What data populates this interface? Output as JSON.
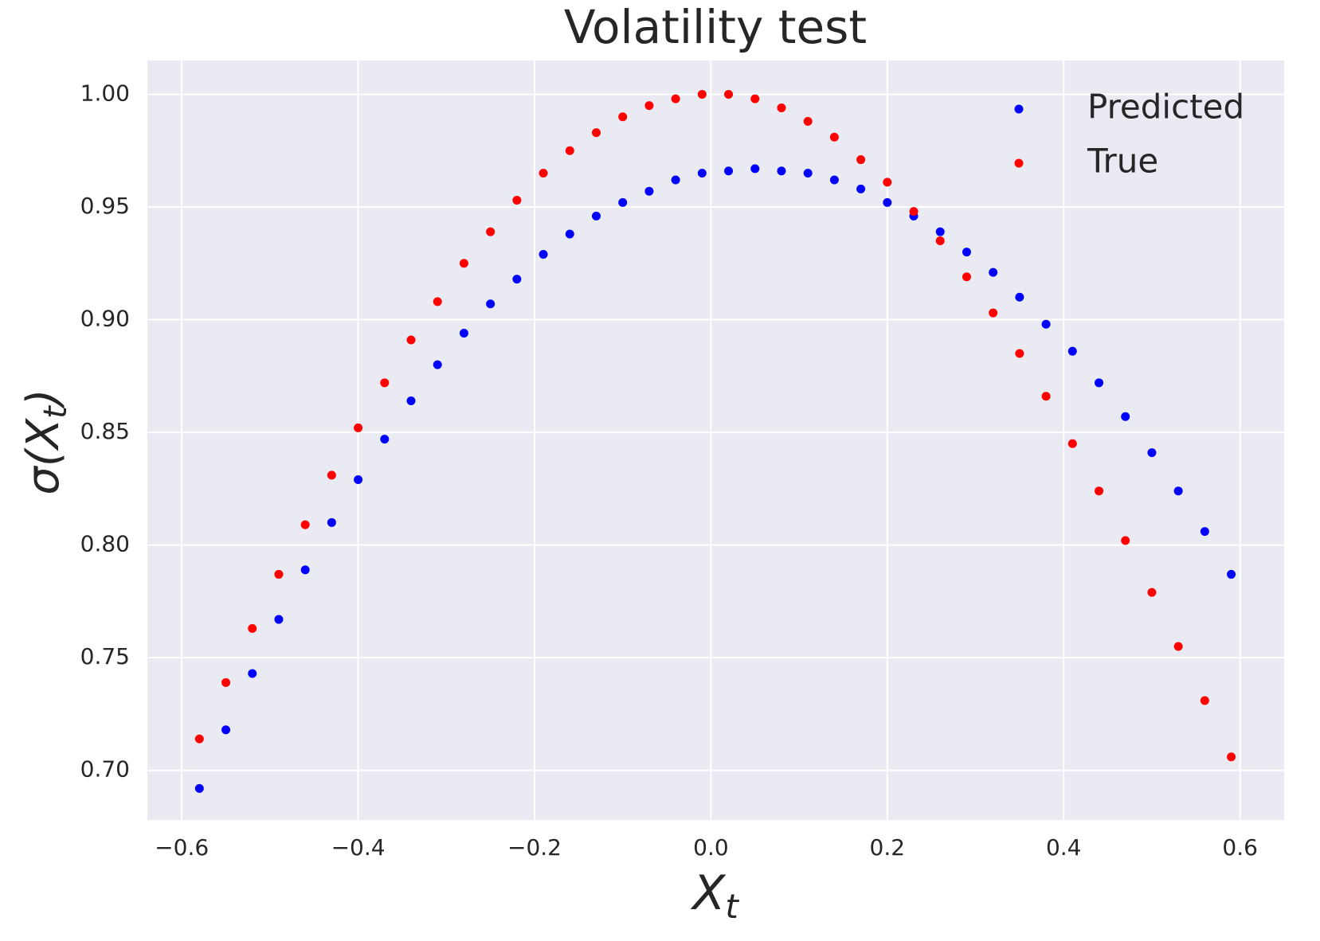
{
  "chart_data": {
    "type": "scatter",
    "title": "Volatility test",
    "xlabel": [
      "X",
      "t"
    ],
    "ylabel": [
      "σ(X",
      "t",
      ")"
    ],
    "x": [
      -0.58,
      -0.55,
      -0.52,
      -0.49,
      -0.46,
      -0.43,
      -0.4,
      -0.37,
      -0.34,
      -0.31,
      -0.28,
      -0.25,
      -0.22,
      -0.19,
      -0.16,
      -0.13,
      -0.1,
      -0.07,
      -0.04,
      -0.01,
      0.02,
      0.05,
      0.08,
      0.11,
      0.14,
      0.17,
      0.2,
      0.23,
      0.26,
      0.29,
      0.32,
      0.35,
      0.38,
      0.41,
      0.44,
      0.47,
      0.5,
      0.53,
      0.56,
      0.59
    ],
    "series": [
      {
        "name": "Predicted",
        "color": "#0000ff",
        "values": [
          0.692,
          0.718,
          0.743,
          0.767,
          0.789,
          0.81,
          0.829,
          0.847,
          0.864,
          0.88,
          0.894,
          0.907,
          0.918,
          0.929,
          0.938,
          0.946,
          0.952,
          0.957,
          0.962,
          0.965,
          0.966,
          0.967,
          0.966,
          0.965,
          0.962,
          0.958,
          0.952,
          0.946,
          0.939,
          0.93,
          0.921,
          0.91,
          0.898,
          0.886,
          0.872,
          0.857,
          0.841,
          0.824,
          0.806,
          0.787
        ]
      },
      {
        "name": "True",
        "color": "#ff0000",
        "values": [
          0.714,
          0.739,
          0.763,
          0.787,
          0.809,
          0.831,
          0.852,
          0.872,
          0.891,
          0.908,
          0.925,
          0.939,
          0.953,
          0.965,
          0.975,
          0.983,
          0.99,
          0.995,
          0.998,
          1.0,
          1.0,
          0.998,
          0.994,
          0.988,
          0.981,
          0.971,
          0.961,
          0.948,
          0.935,
          0.919,
          0.903,
          0.885,
          0.866,
          0.845,
          0.824,
          0.802,
          0.779,
          0.755,
          0.731,
          0.706
        ]
      }
    ],
    "xlim": [
      -0.639,
      0.65
    ],
    "ylim": [
      0.678,
      1.015
    ],
    "xticks": [
      {
        "value": -0.6,
        "label": "−0.6"
      },
      {
        "value": -0.4,
        "label": "−0.4"
      },
      {
        "value": -0.2,
        "label": "−0.2"
      },
      {
        "value": 0,
        "label": "0.0"
      },
      {
        "value": 0.2,
        "label": "0.2"
      },
      {
        "value": 0.4,
        "label": "0.4"
      },
      {
        "value": 0.6,
        "label": "0.6"
      }
    ],
    "yticks": [
      {
        "value": 0.7,
        "label": "0.70"
      },
      {
        "value": 0.75,
        "label": "0.75"
      },
      {
        "value": 0.8,
        "label": "0.80"
      },
      {
        "value": 0.85,
        "label": "0.85"
      },
      {
        "value": 0.9,
        "label": "0.90"
      },
      {
        "value": 0.95,
        "label": "0.95"
      },
      {
        "value": 1.0,
        "label": "1.00"
      }
    ],
    "grid": true,
    "legend": "upper right"
  }
}
